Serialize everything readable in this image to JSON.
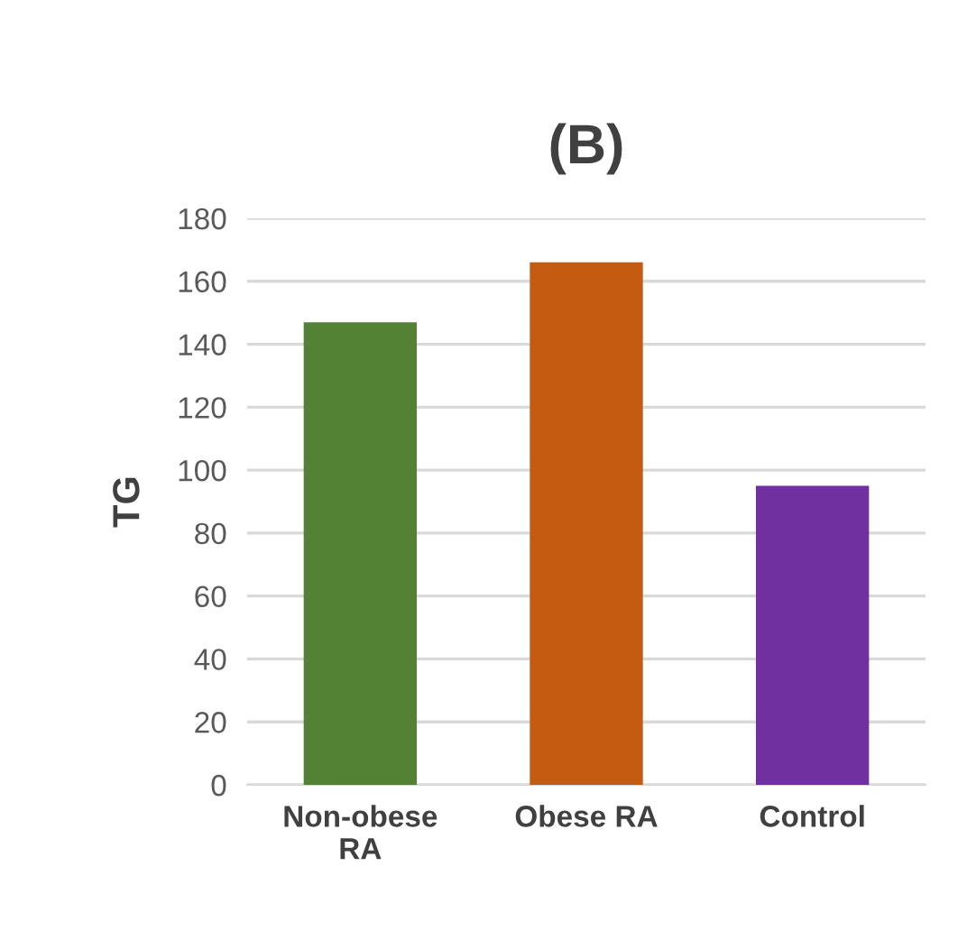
{
  "chart_data": {
    "type": "bar",
    "title": "(B)",
    "ylabel": "TG",
    "categories": [
      "Non-obese\nRA",
      "Obese RA",
      "Control"
    ],
    "values": [
      147,
      166,
      95
    ],
    "colors": [
      "#548235",
      "#c55a11",
      "#7030a0"
    ],
    "ylim": [
      0,
      180
    ],
    "yticks": [
      0,
      20,
      40,
      60,
      80,
      100,
      120,
      140,
      160,
      180
    ],
    "grid": "y"
  }
}
